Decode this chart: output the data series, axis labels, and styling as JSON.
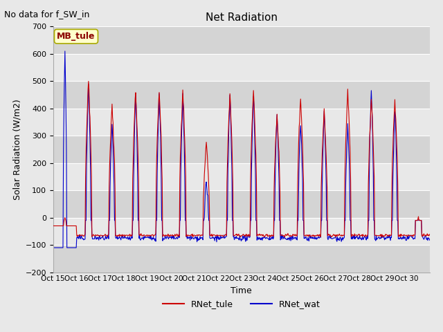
{
  "title": "Net Radiation",
  "top_left_text": "No data for f_SW_in",
  "xlabel": "Time",
  "ylabel": "Solar Radiation (W/m2)",
  "ylim": [
    -200,
    700
  ],
  "yticks": [
    -200,
    -100,
    0,
    100,
    200,
    300,
    400,
    500,
    600,
    700
  ],
  "xtick_labels": [
    "Oct 15",
    "Oct 16",
    "Oct 17",
    "Oct 18",
    "Oct 19",
    "Oct 20",
    "Oct 21",
    "Oct 22",
    "Oct 23",
    "Oct 24",
    "Oct 25",
    "Oct 26",
    "Oct 27",
    "Oct 28",
    "Oct 29",
    "Oct 30"
  ],
  "color_tule": "#cc0000",
  "color_wat": "#0000cc",
  "legend_entries": [
    "RNet_tule",
    "RNet_wat"
  ],
  "annotation_text": "MB_tule",
  "background_color": "#e8e8e8",
  "band_colors": [
    "#d4d4d4",
    "#e8e8e8"
  ],
  "lw": 0.8,
  "figsize": [
    6.4,
    4.8
  ],
  "dpi": 100
}
